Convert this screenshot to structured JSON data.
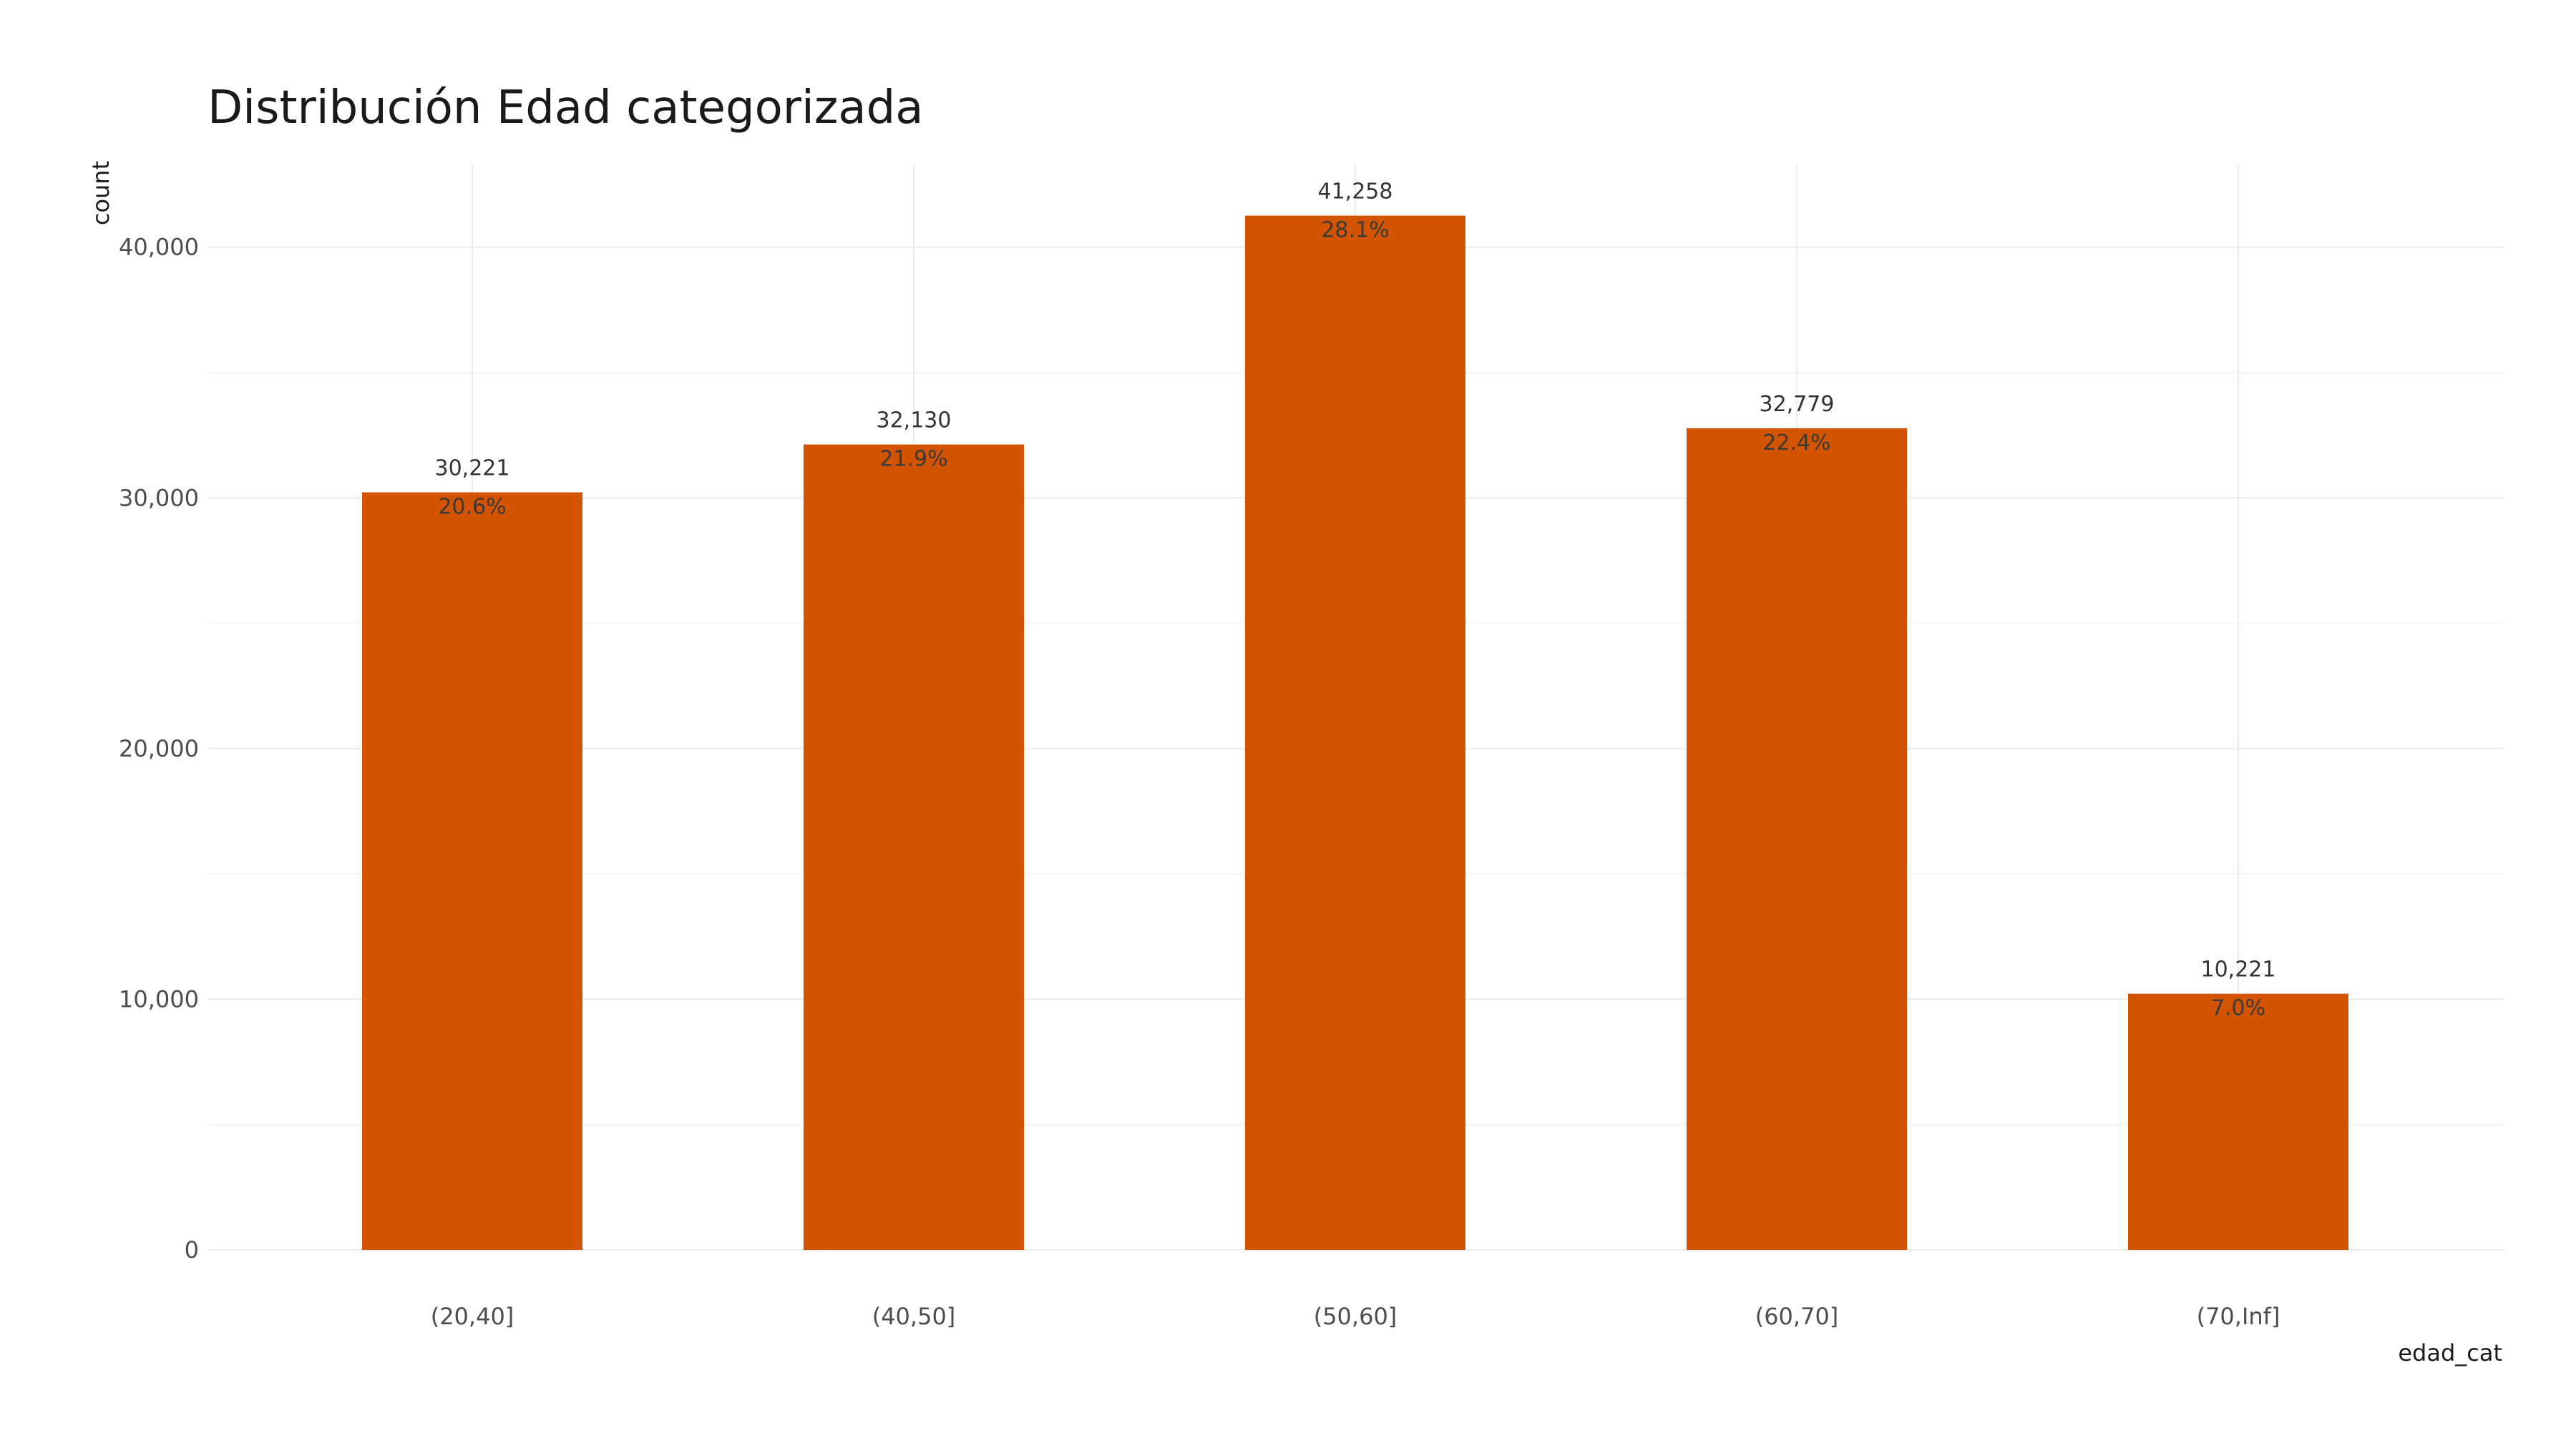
{
  "chart_data": {
    "type": "bar",
    "title": "Distribución Edad categorizada",
    "xlabel": "edad_cat",
    "ylabel": "count",
    "categories": [
      "(20,40]",
      "(40,50]",
      "(50,60]",
      "(60,70]",
      "(70,Inf]"
    ],
    "values": [
      30221,
      32130,
      41258,
      32779,
      10221
    ],
    "value_labels": [
      "30,221",
      "32,130",
      "41,258",
      "32,779",
      "10,221"
    ],
    "percent_labels": [
      "20.6%",
      "21.9%",
      "28.1%",
      "22.4%",
      "7.0%"
    ],
    "ylim": [
      0,
      43300
    ],
    "y_ticks": [
      0,
      10000,
      20000,
      30000,
      40000
    ],
    "y_tick_labels": [
      "0",
      "10,000",
      "20,000",
      "30,000",
      "40,000"
    ],
    "grid": true,
    "legend": "none",
    "bar_color": "#D35400"
  }
}
